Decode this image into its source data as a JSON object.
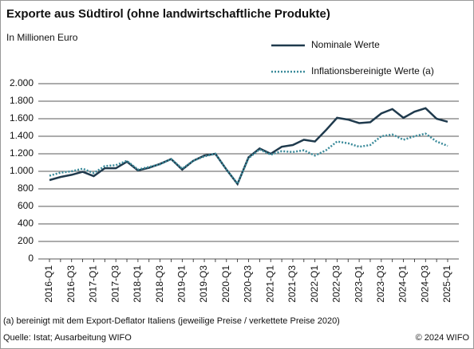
{
  "chart_data": {
    "type": "line",
    "title": "Exporte aus Südtirol (ohne landwirtschaftliche Produkte)",
    "subtitle": "In Millionen Euro",
    "footnote": "(a) bereinigt mit dem Export-Deflator Italiens (jeweilige Preise / verkettete Preise 2020)",
    "source": "Quelle: Istat; Ausarbeitung WIFO",
    "copyright": "© 2024 WIFO",
    "categories": [
      "2016-Q1",
      null,
      "2016-Q3",
      null,
      "2017-Q1",
      null,
      "2017-Q3",
      null,
      "2018-Q1",
      null,
      "2018-Q3",
      null,
      "2019-Q1",
      null,
      "2019-Q3",
      null,
      "2020-Q1",
      null,
      "2020-Q3",
      null,
      "2021-Q1",
      null,
      "2021-Q3",
      null,
      "2022-Q1",
      null,
      "2022-Q3",
      null,
      "2023-Q1",
      null,
      "2023-Q3",
      null,
      "2024-Q1",
      null,
      "2024-Q3",
      null,
      "2025-Q1"
    ],
    "series": [
      {
        "name": "Nominale Werte",
        "color": "#1f3a4d",
        "line_style": "solid",
        "values": [
          900,
          935,
          960,
          995,
          945,
          1035,
          1035,
          1110,
          1010,
          1040,
          1085,
          1140,
          1020,
          1120,
          1180,
          1200,
          1020,
          855,
          1160,
          1260,
          1200,
          1280,
          1300,
          1360,
          1340,
          1470,
          1610,
          1590,
          1550,
          1560,
          1660,
          1710,
          1610,
          1680,
          1720,
          1600,
          1565
        ]
      },
      {
        "name": "Inflationsbereinigte Werte (a)",
        "color": "#3a8a9a",
        "line_style": "dotted",
        "values": [
          950,
          985,
          1000,
          1030,
          980,
          1060,
          1070,
          1120,
          1020,
          1050,
          1080,
          1140,
          1030,
          1120,
          1170,
          1200,
          1020,
          860,
          1150,
          1250,
          1190,
          1230,
          1220,
          1240,
          1180,
          1240,
          1340,
          1320,
          1280,
          1300,
          1400,
          1420,
          1360,
          1400,
          1430,
          1340,
          1290
        ]
      }
    ],
    "ylim": [
      0,
      2000
    ],
    "yticks": [
      0,
      200,
      400,
      600,
      800,
      {
        "value": 1000,
        "label": "1.000"
      },
      {
        "value": 1200,
        "label": "1.200"
      },
      {
        "value": 1400,
        "label": "1.400"
      },
      {
        "value": 1600,
        "label": "1.600"
      },
      {
        "value": 1800,
        "label": "1.800"
      },
      {
        "value": 2000,
        "label": "2.000"
      }
    ],
    "grid": true
  }
}
